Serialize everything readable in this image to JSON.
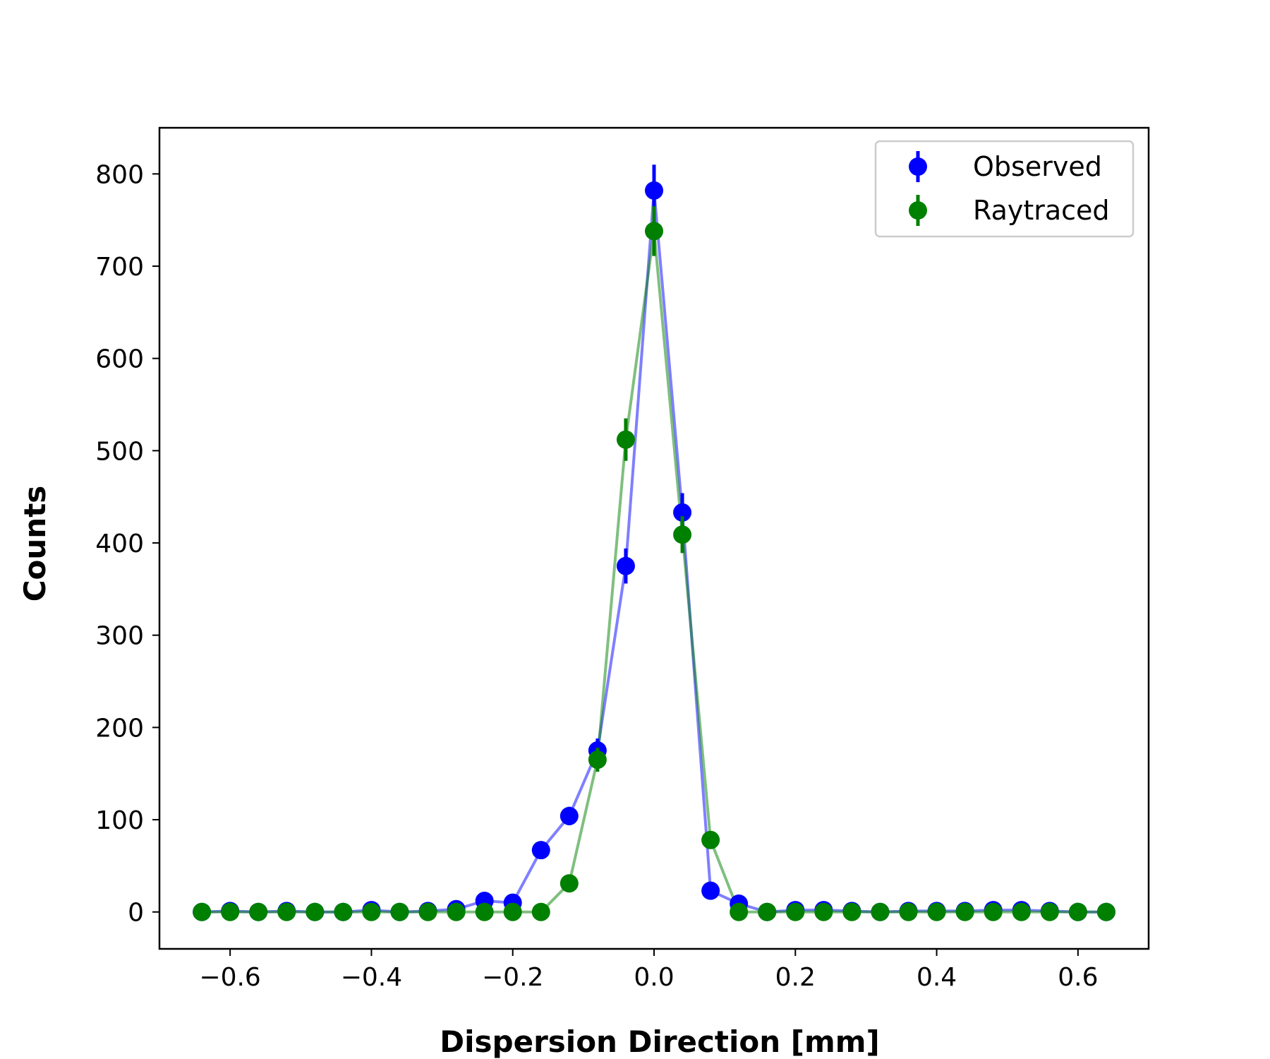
{
  "chart_data": {
    "type": "scatter",
    "xlabel": "Dispersion Direction [mm]",
    "ylabel": "Counts",
    "xlim": [
      -0.7,
      0.7
    ],
    "ylim": [
      -40,
      850
    ],
    "grid": false,
    "legend_position": "upper right",
    "x_ticks": [
      -0.6,
      -0.4,
      -0.2,
      0.0,
      0.2,
      0.4,
      0.6
    ],
    "x_tick_labels": [
      "−0.6",
      "−0.4",
      "−0.2",
      "0.0",
      "0.2",
      "0.4",
      "0.6"
    ],
    "y_ticks": [
      0,
      100,
      200,
      300,
      400,
      500,
      600,
      700,
      800
    ],
    "y_tick_labels": [
      "0",
      "100",
      "200",
      "300",
      "400",
      "500",
      "600",
      "700",
      "800"
    ],
    "x": [
      -0.64,
      -0.6,
      -0.56,
      -0.52,
      -0.48,
      -0.44,
      -0.4,
      -0.36,
      -0.32,
      -0.28,
      -0.24,
      -0.2,
      -0.16,
      -0.12,
      -0.08,
      -0.04,
      0.0,
      0.04,
      0.08,
      0.12,
      0.16,
      0.2,
      0.24,
      0.28,
      0.32,
      0.36,
      0.4,
      0.44,
      0.48,
      0.52,
      0.56,
      0.6,
      0.64
    ],
    "series": [
      {
        "name": "Observed",
        "color": "#0000ff",
        "values": [
          0,
          1,
          0,
          1,
          0,
          0,
          2,
          0,
          1,
          3,
          12,
          10,
          67,
          104,
          175,
          375,
          782,
          433,
          23,
          9,
          0,
          2,
          2,
          1,
          0,
          1,
          1,
          1,
          2,
          2,
          1,
          0,
          0
        ],
        "errors": [
          0,
          1,
          0,
          1,
          0,
          0,
          1,
          0,
          1,
          2,
          3,
          3,
          8,
          10,
          13,
          19,
          28,
          21,
          5,
          3,
          0,
          1,
          1,
          1,
          0,
          1,
          1,
          1,
          1,
          1,
          1,
          0,
          0
        ]
      },
      {
        "name": "Raytraced",
        "color": "#008000",
        "values": [
          0,
          0,
          0,
          0,
          0,
          0,
          0,
          0,
          0,
          0,
          0,
          0,
          0,
          31,
          165,
          512,
          738,
          409,
          78,
          0,
          0,
          0,
          0,
          0,
          0,
          0,
          0,
          0,
          0,
          0,
          0,
          0,
          0
        ],
        "errors": [
          0,
          0,
          0,
          0,
          0,
          0,
          0,
          0,
          0,
          0,
          0,
          0,
          0,
          6,
          13,
          23,
          27,
          20,
          9,
          0,
          0,
          0,
          0,
          0,
          0,
          0,
          0,
          0,
          0,
          0,
          0,
          0,
          0
        ]
      }
    ]
  }
}
